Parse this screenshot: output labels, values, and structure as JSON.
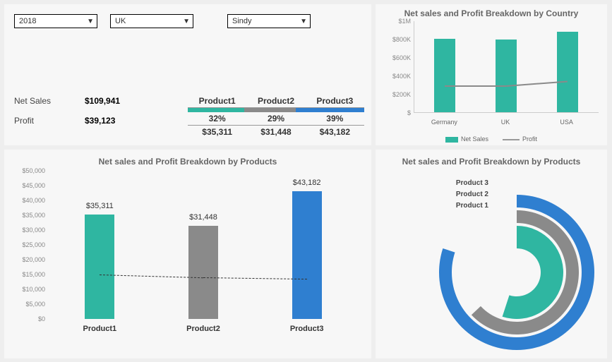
{
  "colors": {
    "teal": "#2fb6a1",
    "gray": "#8a8a8a",
    "blue": "#2f7fd0",
    "panel": "#f7f7f7",
    "bg": "#eeeeee",
    "text_muted": "#666666"
  },
  "filters": {
    "year": {
      "value": "2018"
    },
    "country": {
      "value": "UK"
    },
    "person": {
      "value": "Sindy"
    }
  },
  "kpi": {
    "net_sales_label": "Net Sales",
    "net_sales_value": "$109,941",
    "profit_label": "Profit",
    "profit_value": "$39,123"
  },
  "prod_breakdown": {
    "headers": [
      "Product1",
      "Product2",
      "Product3"
    ],
    "bar_colors": [
      "#2fb6a1",
      "#8a8a8a",
      "#2f7fd0"
    ],
    "pct": [
      "32%",
      "29%",
      "39%"
    ],
    "pct_widths": [
      32,
      29,
      39
    ],
    "amounts": [
      "$35,311",
      "$31,448",
      "$43,182"
    ]
  },
  "country_chart": {
    "title": "Net sales and Profit Breakdown by Country",
    "ymax": 1000000,
    "yticks": [
      "$1M",
      "$800K",
      "$600K",
      "$400K",
      "$200K",
      "$"
    ],
    "ytick_vals": [
      1000000,
      800000,
      600000,
      400000,
      200000,
      0
    ],
    "categories": [
      "Germany",
      "UK",
      "USA"
    ],
    "sales": [
      800000,
      790000,
      880000
    ],
    "profit": [
      300000,
      300000,
      350000
    ],
    "bar_color": "#2fb6a1",
    "line_color": "#8a8a8a",
    "legend": {
      "sales": "Net Sales",
      "profit": "Profit"
    }
  },
  "product_chart": {
    "title": "Net sales and Profit Breakdown by Products",
    "ymax": 50000,
    "yticks": [
      "$50,000",
      "$45,000",
      "$40,000",
      "$35,000",
      "$30,000",
      "$25,000",
      "$20,000",
      "$15,000",
      "$10,000",
      "$5,000",
      "$0"
    ],
    "ytick_vals": [
      50000,
      45000,
      40000,
      35000,
      30000,
      25000,
      20000,
      15000,
      10000,
      5000,
      0
    ],
    "categories": [
      "Product1",
      "Product2",
      "Product3"
    ],
    "values": [
      35311,
      31448,
      43182
    ],
    "value_labels": [
      "$35,311",
      "$31,448",
      "$43,182"
    ],
    "bar_colors": [
      "#2fb6a1",
      "#8a8a8a",
      "#2f7fd0"
    ],
    "profit_line": [
      15000,
      14000,
      13500
    ]
  },
  "donut_chart": {
    "title": "Net sales and Profit Breakdown by Products",
    "labels": [
      "Product 3",
      "Product 2",
      "Product 1"
    ],
    "rings": [
      {
        "color": "#2f7fd0",
        "fraction": 0.8,
        "r_outer": 110,
        "r_inner": 92
      },
      {
        "color": "#8a8a8a",
        "fraction": 0.63,
        "r_outer": 88,
        "r_inner": 70
      },
      {
        "color": "#2fb6a1",
        "fraction": 0.55,
        "r_outer": 66,
        "r_inner": 34
      }
    ]
  }
}
